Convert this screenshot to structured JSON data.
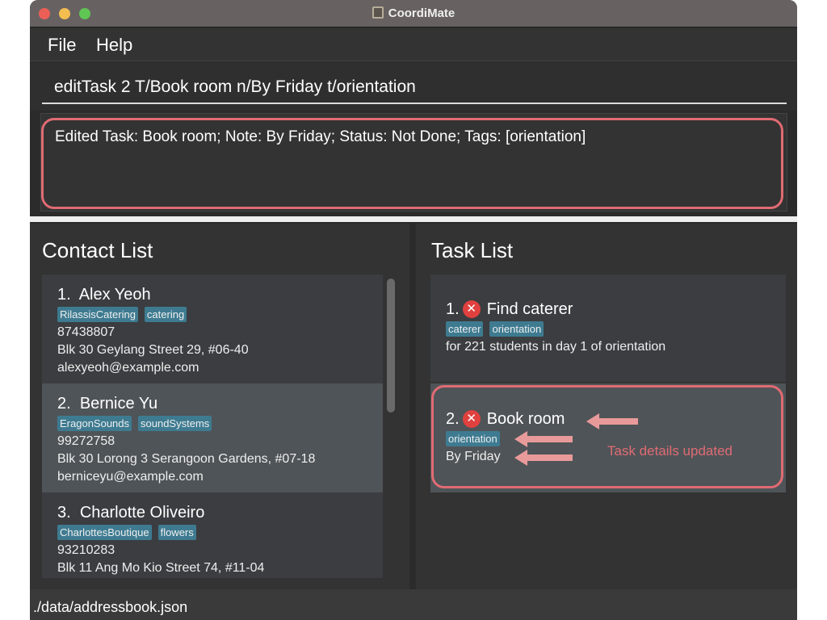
{
  "window": {
    "title": "CoordiMate"
  },
  "menu": {
    "file": "File",
    "help": "Help"
  },
  "command": {
    "value": "editTask 2 T/Book room n/By Friday t/orientation"
  },
  "result": {
    "text": "Edited Task: Book room; Note: By Friday; Status: Not Done; Tags: [orientation]"
  },
  "contacts": {
    "title": "Contact List",
    "items": [
      {
        "index": "1.",
        "name": "Alex Yeoh",
        "tags": [
          "RilassisCatering",
          "catering"
        ],
        "phone": "87438807",
        "address": "Blk 30 Geylang Street 29, #06-40",
        "email": "alexyeoh@example.com"
      },
      {
        "index": "2.",
        "name": "Bernice Yu",
        "tags": [
          "EragonSounds",
          "soundSystems"
        ],
        "phone": "99272758",
        "address": "Blk 30 Lorong 3 Serangoon Gardens, #07-18",
        "email": "berniceyu@example.com"
      },
      {
        "index": "3.",
        "name": "Charlotte Oliveiro",
        "tags": [
          "CharlottesBoutique",
          "flowers"
        ],
        "phone": "93210283",
        "address": "Blk 11 Ang Mo Kio Street 74, #11-04"
      }
    ]
  },
  "tasks": {
    "title": "Task List",
    "items": [
      {
        "index": "1.",
        "status_icon": "x-circle-icon",
        "title": "Find caterer",
        "tags": [
          "caterer",
          "orientation"
        ],
        "note": "for 221 students in day 1 of orientation"
      },
      {
        "index": "2.",
        "status_icon": "x-circle-icon",
        "title": "Book room",
        "tags": [
          "orientation"
        ],
        "note": "By Friday"
      }
    ]
  },
  "annotation": {
    "text": "Task details updated",
    "color": "#e06b73"
  },
  "statusbar": {
    "path": "./data/addressbook.json"
  },
  "colors": {
    "tag": "#3e7b91",
    "selected_card": "#4f5458"
  }
}
